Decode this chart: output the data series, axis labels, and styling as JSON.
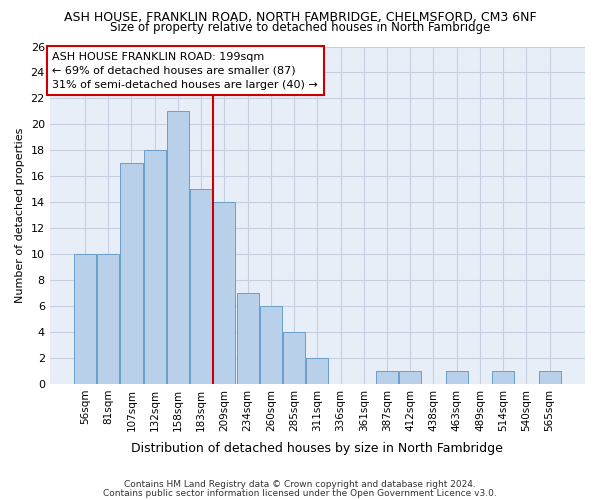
{
  "title": "ASH HOUSE, FRANKLIN ROAD, NORTH FAMBRIDGE, CHELMSFORD, CM3 6NF",
  "subtitle": "Size of property relative to detached houses in North Fambridge",
  "xlabel": "Distribution of detached houses by size in North Fambridge",
  "ylabel": "Number of detached properties",
  "categories": [
    "56sqm",
    "81sqm",
    "107sqm",
    "132sqm",
    "158sqm",
    "183sqm",
    "209sqm",
    "234sqm",
    "260sqm",
    "285sqm",
    "311sqm",
    "336sqm",
    "361sqm",
    "387sqm",
    "412sqm",
    "438sqm",
    "463sqm",
    "489sqm",
    "514sqm",
    "540sqm",
    "565sqm"
  ],
  "values": [
    10,
    10,
    17,
    18,
    21,
    15,
    14,
    7,
    6,
    4,
    2,
    0,
    0,
    1,
    1,
    0,
    1,
    0,
    1,
    0,
    1
  ],
  "bar_color": "#b8d0ea",
  "bar_edge_color": "#6a9fc8",
  "ylim": [
    0,
    26
  ],
  "yticks": [
    0,
    2,
    4,
    6,
    8,
    10,
    12,
    14,
    16,
    18,
    20,
    22,
    24,
    26
  ],
  "vline_x": 5.5,
  "vline_color": "#cc0000",
  "annotation_line1": "ASH HOUSE FRANKLIN ROAD: 199sqm",
  "annotation_line2": "← 69% of detached houses are smaller (87)",
  "annotation_line3": "31% of semi-detached houses are larger (40) →",
  "annotation_box_color": "#ffffff",
  "annotation_box_edge": "#cc0000",
  "footer1": "Contains HM Land Registry data © Crown copyright and database right 2024.",
  "footer2": "Contains public sector information licensed under the Open Government Licence v3.0.",
  "fig_bg_color": "#ffffff",
  "plot_bg_color": "#e8eef8",
  "grid_color": "#c5cfe0",
  "title_fontsize": 9,
  "subtitle_fontsize": 8.5,
  "ylabel_fontsize": 8,
  "xlabel_fontsize": 9,
  "tick_fontsize": 8,
  "xtick_fontsize": 7.5,
  "footer_fontsize": 6.5,
  "annotation_fontsize": 8
}
